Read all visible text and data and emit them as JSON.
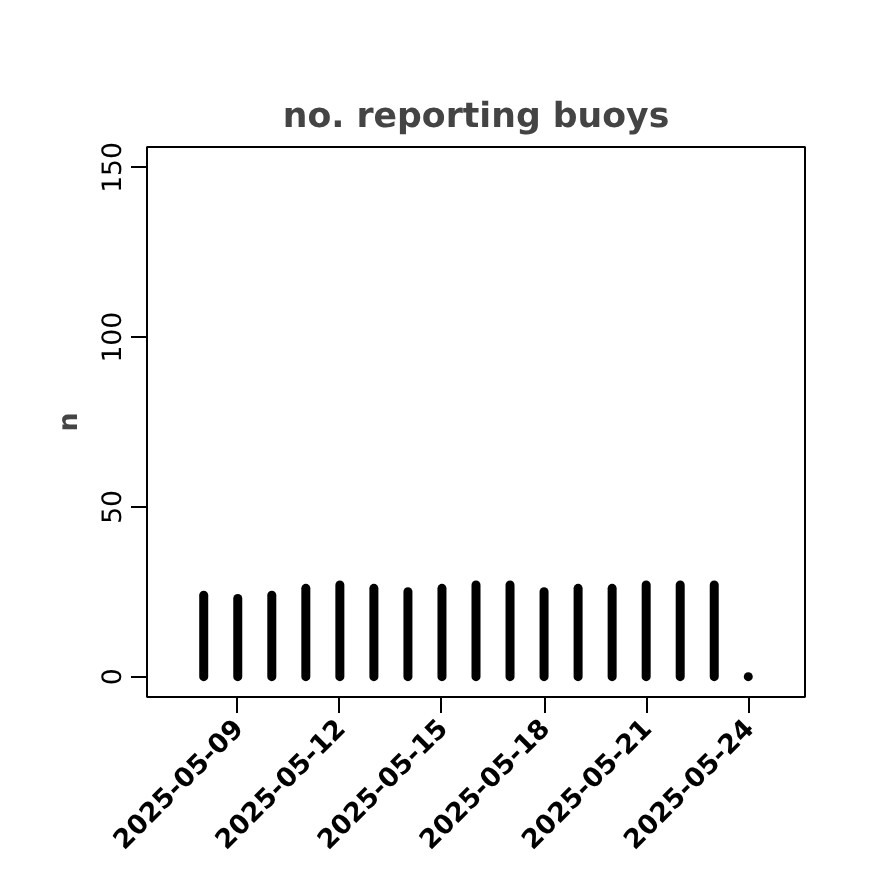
{
  "chart_data": {
    "type": "bar",
    "title": "no. reporting buoys",
    "ylabel": "n",
    "x": [
      "2025-05-08",
      "2025-05-09",
      "2025-05-10",
      "2025-05-11",
      "2025-05-12",
      "2025-05-13",
      "2025-05-14",
      "2025-05-15",
      "2025-05-16",
      "2025-05-17",
      "2025-05-18",
      "2025-05-19",
      "2025-05-20",
      "2025-05-21",
      "2025-05-22",
      "2025-05-23",
      "2025-05-24"
    ],
    "values": [
      24,
      23,
      24,
      26,
      27,
      26,
      25,
      26,
      27,
      27,
      25,
      26,
      26,
      27,
      27,
      27,
      0
    ],
    "color": "#000000",
    "xlim": [
      "2025-05-06T08:00",
      "2025-05-25T16:00"
    ],
    "xticks": [
      {
        "value": "2025-05-09",
        "label": "2025-05-09"
      },
      {
        "value": "2025-05-12",
        "label": "2025-05-12"
      },
      {
        "value": "2025-05-15",
        "label": "2025-05-15"
      },
      {
        "value": "2025-05-18",
        "label": "2025-05-18"
      },
      {
        "value": "2025-05-21",
        "label": "2025-05-21"
      },
      {
        "value": "2025-05-24",
        "label": "2025-05-24"
      }
    ],
    "ylim": [
      -6,
      156
    ],
    "yticks": [
      0,
      50,
      100,
      150
    ],
    "grid": false
  }
}
